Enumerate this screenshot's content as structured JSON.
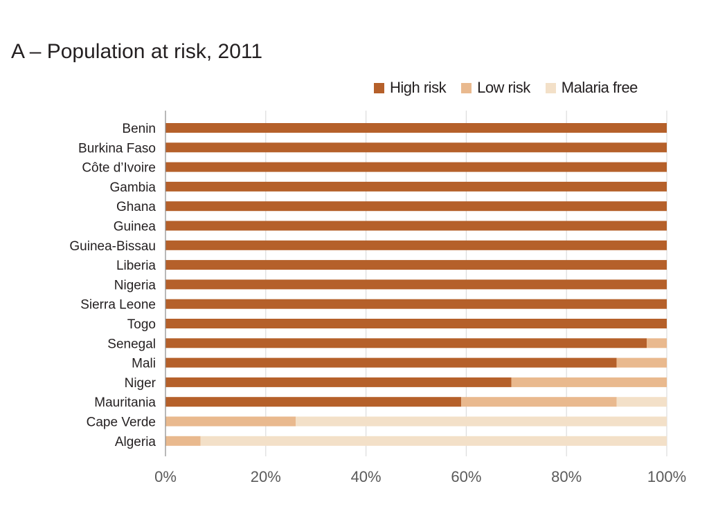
{
  "chart_data": {
    "type": "bar",
    "orientation": "horizontal",
    "stacked": true,
    "title": "A – Population at risk, 2011",
    "categories": [
      "Benin",
      "Burkina Faso",
      "Côte d’Ivoire",
      "Gambia",
      "Ghana",
      "Guinea",
      "Guinea-Bissau",
      "Liberia",
      "Nigeria",
      "Sierra Leone",
      "Togo",
      "Senegal",
      "Mali",
      "Niger",
      "Mauritania",
      "Cape Verde",
      "Algeria"
    ],
    "series": [
      {
        "name": "High risk",
        "color": "#b5602a",
        "values": [
          100,
          100,
          100,
          100,
          100,
          100,
          100,
          100,
          100,
          100,
          100,
          96,
          90,
          69,
          59,
          0,
          0
        ]
      },
      {
        "name": "Low risk",
        "color": "#e9b98e",
        "values": [
          0,
          0,
          0,
          0,
          0,
          0,
          0,
          0,
          0,
          0,
          0,
          4,
          10,
          31,
          31,
          26,
          7
        ]
      },
      {
        "name": "Malaria free",
        "color": "#f3e0c8",
        "values": [
          0,
          0,
          0,
          0,
          0,
          0,
          0,
          0,
          0,
          0,
          0,
          0,
          0,
          0,
          10,
          74,
          93
        ]
      }
    ],
    "xlim": [
      0,
      100
    ],
    "x_ticks": [
      0,
      20,
      40,
      60,
      80,
      100
    ],
    "x_tick_labels": [
      "0%",
      "20%",
      "40%",
      "60%",
      "80%",
      "100%"
    ],
    "grid": "vertical",
    "legend_position": "top-right"
  }
}
